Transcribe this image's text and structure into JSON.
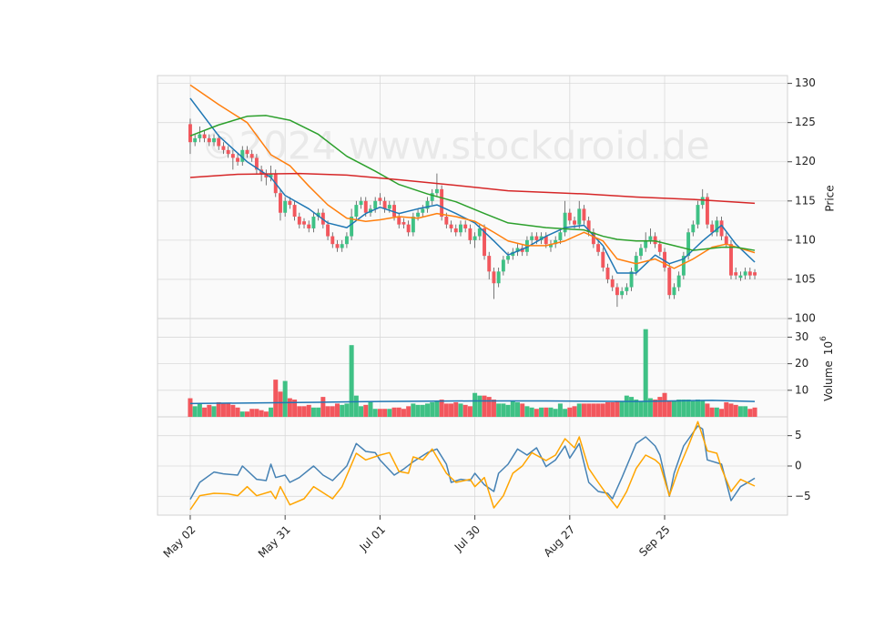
{
  "chart_data": {
    "type": "candlestick",
    "watermark": "©2024 www.stockdroid.de",
    "grid": true,
    "xlim": [
      -6.9,
      125.9
    ],
    "xticks": [
      {
        "value": 0,
        "label": "May 02"
      },
      {
        "value": 20,
        "label": "May 31"
      },
      {
        "value": 40,
        "label": "Jul 01"
      },
      {
        "value": 60,
        "label": "Jul 30"
      },
      {
        "value": 80,
        "label": "Aug 27"
      },
      {
        "value": 100,
        "label": "Sep 25"
      }
    ],
    "up_color": "#3fc185",
    "down_color": "#f2575d",
    "ylabel": "Price",
    "ylim": [
      100,
      131
    ],
    "yticks": [
      100,
      105,
      110,
      115,
      120,
      125,
      130
    ],
    "open": [
      124.8,
      122.5,
      123,
      123.5,
      123,
      122.5,
      123,
      122,
      121.5,
      121,
      120.5,
      120,
      121.5,
      121,
      120.5,
      119,
      118.5,
      118,
      118.5,
      116,
      113.5,
      115,
      114.5,
      113,
      112.4,
      112,
      111.5,
      113,
      113.5,
      112,
      110.5,
      109.5,
      109,
      109.5,
      110.5,
      113,
      114.5,
      115,
      113.5,
      114,
      115.4,
      115,
      114,
      114.5,
      113,
      112.3,
      112,
      111,
      113,
      113.5,
      114,
      115,
      116,
      116.5,
      113,
      112,
      111.5,
      111,
      112,
      111.5,
      110,
      110.5,
      111.5,
      108,
      106,
      104.5,
      106,
      107.5,
      108,
      108.5,
      109,
      108.5,
      110,
      110.5,
      110,
      110.5,
      109.1,
      109.5,
      110,
      111,
      113.5,
      112.5,
      112,
      114,
      112.5,
      111,
      109.5,
      108.5,
      106.5,
      105,
      104,
      103,
      103.5,
      104,
      106,
      108,
      109,
      110,
      110.5,
      109.5,
      108.5,
      106.5,
      103,
      104,
      105.5,
      108,
      111,
      112,
      114.5,
      115.5,
      112,
      111,
      112.5,
      110.5,
      109.5,
      105.9,
      105.2,
      105.5,
      106,
      105.9
    ],
    "high": [
      125.5,
      123.5,
      124.5,
      124,
      123.5,
      123.5,
      123.5,
      122.5,
      122,
      121.5,
      121,
      122,
      122,
      121.5,
      121,
      119.5,
      119,
      119.5,
      119,
      116.5,
      115.5,
      115.5,
      115,
      113.5,
      112.8,
      112.5,
      113.5,
      114,
      114,
      112.5,
      111,
      110,
      110,
      111,
      114,
      115,
      115.5,
      115.5,
      114.5,
      115.5,
      116,
      115.5,
      115,
      115,
      113.5,
      112.8,
      112.5,
      113.5,
      114,
      114.5,
      115.5,
      116.5,
      118.5,
      117,
      113.5,
      112.5,
      112,
      112.5,
      112.5,
      112,
      111,
      112,
      112,
      108.5,
      106.5,
      106.5,
      108,
      108.5,
      109,
      109.5,
      109.5,
      110.5,
      111,
      111,
      111,
      111,
      110,
      110.5,
      111.5,
      115,
      114,
      113,
      115,
      114.5,
      113,
      111.5,
      110,
      109,
      107,
      105.5,
      104.5,
      104,
      104.5,
      106.5,
      108.5,
      109.5,
      111,
      111.5,
      111,
      110,
      109,
      107,
      104.5,
      106,
      108.5,
      111.5,
      112.5,
      115,
      116.5,
      116,
      112.5,
      113,
      113,
      111,
      110,
      106.5,
      106,
      106.5,
      106.5,
      106.3
    ],
    "low": [
      121,
      122,
      122.5,
      122.5,
      122,
      122,
      121.5,
      121,
      120.5,
      119,
      119.5,
      119.5,
      120.5,
      120,
      118.5,
      117.5,
      117,
      117.5,
      115.5,
      112.5,
      113,
      114,
      112.5,
      111.5,
      111.5,
      111,
      111,
      112.5,
      111.5,
      110,
      109,
      108.5,
      108.5,
      109,
      110,
      112.5,
      114,
      113,
      113,
      113.5,
      114.5,
      113.5,
      113.5,
      112.5,
      111.5,
      111.5,
      110.5,
      110.5,
      112.5,
      113,
      113.5,
      114.5,
      115.5,
      112.5,
      111.5,
      111,
      110.5,
      110.5,
      111,
      109.5,
      109,
      110,
      107.5,
      105,
      102.5,
      104,
      105.5,
      107,
      107.5,
      108,
      108,
      108,
      109.5,
      109.5,
      109.5,
      109,
      108.5,
      109,
      109.5,
      110.5,
      112,
      111.5,
      111.5,
      112,
      110.5,
      109,
      108,
      106,
      104.5,
      103.5,
      101.5,
      102.5,
      103,
      103.5,
      105.5,
      107.5,
      108.5,
      109.5,
      109,
      108,
      106,
      102.5,
      102.5,
      103.5,
      105,
      107.5,
      110.5,
      111.5,
      114,
      111.5,
      110.5,
      110.5,
      110,
      109,
      105,
      105,
      104.8,
      105,
      105,
      105
    ],
    "close": [
      122.5,
      123,
      123.5,
      123,
      122.5,
      123,
      122,
      121.5,
      121,
      120.5,
      120,
      121.5,
      121,
      120.5,
      119,
      118.5,
      118,
      118.5,
      116,
      113.5,
      115,
      114.5,
      113,
      112,
      112,
      111.5,
      113,
      113.5,
      112,
      110.5,
      109.5,
      109,
      109.5,
      110.5,
      113,
      114.5,
      115,
      113.5,
      114,
      115,
      115,
      114,
      114.5,
      113,
      112,
      112,
      111,
      113,
      113.5,
      114,
      115,
      116,
      116.5,
      113,
      112,
      111.5,
      111,
      112,
      111.5,
      110,
      110.5,
      111.5,
      108,
      106,
      104.5,
      106,
      107.5,
      108,
      108.5,
      109,
      108.5,
      110,
      110.5,
      110,
      110.5,
      109.5,
      109.5,
      110,
      111,
      113.5,
      112.5,
      112,
      114,
      112.5,
      111,
      109.5,
      108.5,
      106.5,
      105,
      104,
      103,
      103.5,
      104,
      106,
      108,
      109,
      110,
      110.5,
      109.5,
      108.5,
      106.5,
      103,
      104,
      105.5,
      108,
      111,
      112,
      114.5,
      115.5,
      112,
      111,
      112.5,
      110.5,
      109.5,
      105.5,
      105.5,
      105.5,
      106,
      105.5,
      105.5
    ],
    "moving_averages": [
      {
        "color": "#1f77b4",
        "x": [
          0,
          6,
          12,
          17,
          20,
          25,
          29,
          33,
          37,
          40,
          44,
          48,
          52,
          56,
          60,
          64,
          67,
          71,
          75,
          79,
          83,
          87,
          90,
          94,
          98,
          101,
          104,
          108,
          112,
          115,
          119
        ],
        "values": [
          128.1,
          123.3,
          120,
          118,
          115.7,
          114,
          112.2,
          111.6,
          113.4,
          114.2,
          113.4,
          114,
          114.5,
          113.4,
          112.2,
          109.9,
          108.1,
          109.1,
          110.5,
          111.6,
          111.9,
          109.3,
          105.8,
          105.8,
          108.1,
          107,
          107.6,
          109.9,
          111.9,
          109.5,
          107.2
        ]
      },
      {
        "color": "#ff7f0e",
        "x": [
          0,
          6,
          12,
          17,
          21,
          25,
          29,
          33,
          37,
          40,
          44,
          48,
          52,
          56,
          60,
          64,
          67,
          71,
          75,
          79,
          83,
          87,
          90,
          94,
          98,
          102,
          106,
          110,
          113,
          119
        ],
        "values": [
          129.8,
          127.3,
          125,
          120.9,
          119.5,
          116.9,
          114.5,
          112.8,
          112.4,
          112.6,
          113,
          112.8,
          113.4,
          113,
          112.4,
          111,
          109.9,
          109.3,
          109.3,
          109.9,
          111,
          109.9,
          107.6,
          107,
          107.6,
          106.4,
          107.6,
          109.1,
          109.5,
          108.4
        ]
      },
      {
        "color": "#2ca02c",
        "x": [
          0,
          6,
          12,
          16,
          21,
          27,
          33,
          39,
          44,
          50,
          56,
          62,
          67,
          75,
          83,
          87,
          90,
          94,
          98,
          102,
          106,
          112,
          115,
          119
        ],
        "values": [
          123.3,
          124.7,
          125.8,
          125.9,
          125.3,
          123.5,
          120.7,
          118.8,
          117.1,
          115.9,
          114.9,
          113.4,
          112.2,
          111.6,
          111.3,
          110.5,
          110.1,
          109.9,
          109.9,
          109.3,
          108.7,
          109.1,
          109.1,
          108.7
        ]
      },
      {
        "color": "#d62728",
        "x": [
          0,
          10,
          23,
          33,
          44,
          56,
          67,
          83,
          94,
          106,
          119
        ],
        "values": [
          118,
          118.4,
          118.5,
          118.3,
          117.7,
          117,
          116.3,
          115.9,
          115.5,
          115.2,
          114.7
        ]
      }
    ],
    "volume": {
      "ylabel": "Volume",
      "offset_base": "10",
      "offset_exponent": "6",
      "ylim": [
        0,
        37
      ],
      "yticks": [
        10,
        20,
        30
      ],
      "values": [
        7,
        4,
        5,
        3.5,
        4.5,
        4,
        5.5,
        5,
        5,
        4.5,
        3.5,
        2,
        2,
        3,
        3,
        2.5,
        2,
        3.5,
        14,
        9.5,
        13.5,
        7,
        6.5,
        4,
        4,
        4.5,
        3.5,
        3.5,
        7.5,
        4,
        4,
        5,
        4.5,
        5,
        27,
        8,
        4,
        4.5,
        6,
        3,
        3,
        3,
        3,
        3.5,
        3.5,
        3,
        4,
        5,
        4.5,
        4.5,
        5,
        5.5,
        6,
        6.5,
        5,
        5,
        5.5,
        5,
        4.5,
        4,
        9,
        8,
        8,
        7.5,
        6.5,
        5,
        5,
        4.5,
        6,
        5.5,
        5,
        4,
        3.5,
        3,
        3.5,
        3.5,
        3.5,
        3,
        5,
        3,
        3.5,
        4,
        5,
        5,
        5,
        5,
        5,
        5,
        5.5,
        5.5,
        6,
        6,
        8,
        7.5,
        6.5,
        6,
        33,
        7,
        6.5,
        7.5,
        9,
        6,
        6,
        6.5,
        6.5,
        6.5,
        6,
        6.5,
        6,
        5,
        3.5,
        3.5,
        3,
        5.5,
        5,
        4.5,
        4,
        4,
        3,
        3.5
      ],
      "average": {
        "color": "#1f77b4",
        "x": [
          0,
          27,
          40,
          60,
          75,
          94,
          110,
          119
        ],
        "values": [
          5,
          5.5,
          5.8,
          6,
          6,
          5.8,
          6.2,
          5.8
        ]
      }
    },
    "indicator": {
      "ylim": [
        -8.1,
        8.1
      ],
      "yticks": [
        {
          "value": -5,
          "label": "−5"
        },
        0,
        5
      ],
      "series": [
        {
          "color": "#4682b4",
          "x": [
            0,
            2,
            5,
            7,
            10,
            11,
            14,
            16,
            17,
            18,
            20,
            21,
            23,
            26,
            28,
            30,
            33,
            35,
            37,
            39,
            40,
            43,
            45,
            47,
            50,
            52,
            54,
            55,
            57,
            59,
            60,
            62,
            64,
            65,
            67,
            69,
            71,
            73,
            75,
            77,
            79,
            80,
            82,
            84,
            86,
            88,
            89,
            91,
            94,
            96,
            98,
            99,
            101,
            102,
            104,
            107,
            108,
            109,
            112,
            114,
            116,
            118,
            119
          ],
          "values": [
            -5.5,
            -2.7,
            -1,
            -1.3,
            -1.5,
            0,
            -2.2,
            -2.4,
            0.3,
            -1.9,
            -1.5,
            -2.7,
            -1.9,
            0,
            -1.5,
            -2.4,
            0,
            3.7,
            2.4,
            2.2,
            1,
            -1.5,
            -0.5,
            0.7,
            2.2,
            2.8,
            0.3,
            -2.7,
            -2.2,
            -2.4,
            -1.2,
            -3.1,
            -4.2,
            -1.2,
            0.3,
            2.8,
            1.8,
            3,
            -0.1,
            1,
            3.3,
            1.3,
            3.7,
            -2.7,
            -4.2,
            -4.5,
            -5.4,
            -1.9,
            3.7,
            4.8,
            3.3,
            1.8,
            -5,
            -1.2,
            3.3,
            6.6,
            6.1,
            1,
            0.3,
            -5.7,
            -3.4,
            -2.5,
            -2
          ]
        },
        {
          "color": "#ffa500",
          "x": [
            0,
            2,
            5,
            8,
            10,
            12,
            14,
            17,
            18,
            19,
            21,
            24,
            26,
            30,
            32,
            35,
            37,
            40,
            42,
            44,
            46,
            47,
            49,
            51,
            54,
            56,
            59,
            60,
            62,
            64,
            66,
            68,
            70,
            72,
            75,
            77,
            79,
            81,
            82,
            84,
            86,
            88,
            90,
            92,
            94,
            96,
            98,
            99,
            101,
            103,
            105,
            107,
            109,
            111,
            112,
            114,
            116,
            119
          ],
          "values": [
            -7.2,
            -4.9,
            -4.5,
            -4.6,
            -4.9,
            -3.4,
            -4.9,
            -4.2,
            -5.4,
            -3.4,
            -6.4,
            -5.4,
            -3.4,
            -5.4,
            -3.4,
            2.1,
            1,
            1.8,
            2.2,
            -0.9,
            -1.2,
            1.5,
            1,
            2.8,
            -1.2,
            -2.7,
            -2.2,
            -3.4,
            -1.9,
            -6.9,
            -4.9,
            -1.2,
            0,
            2.2,
            0.9,
            1.8,
            4.5,
            3,
            4.8,
            -0.4,
            -2.7,
            -4.9,
            -6.9,
            -4.2,
            -0.4,
            1.8,
            1,
            0.3,
            -4.9,
            -0.4,
            3.3,
            7.3,
            2.5,
            2.1,
            -0.4,
            -4.2,
            -2.2,
            -3.3
          ]
        }
      ]
    }
  }
}
